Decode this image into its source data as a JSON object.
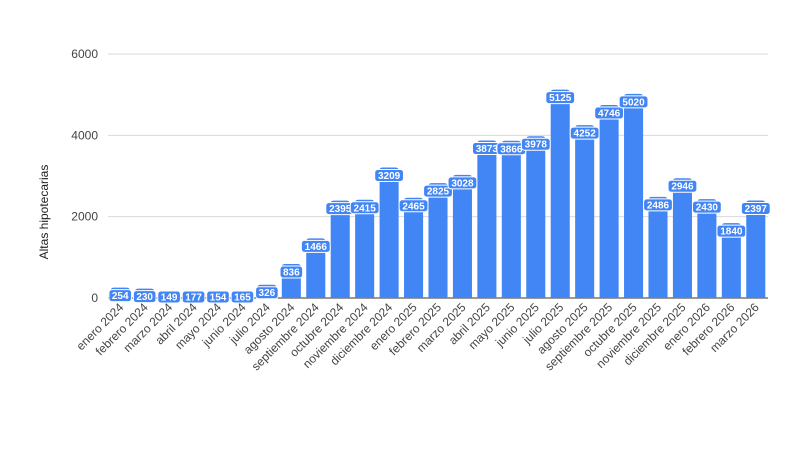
{
  "chart_data": {
    "type": "bar",
    "ylabel": "Altas hipotecarias",
    "xlabel": "",
    "ylim": [
      0,
      6000
    ],
    "yticks": [
      0,
      2000,
      4000,
      6000
    ],
    "grid": true,
    "legend": "none",
    "bar_color": "#4285f4",
    "categories": [
      "enero 2024",
      "febrero 2024",
      "marzo 2024",
      "abril 2024",
      "mayo 2024",
      "junio 2024",
      "julio 2024",
      "agosto 2024",
      "septiembre 2024",
      "octubre 2024",
      "noviembre 2024",
      "diciembre 2024",
      "enero 2025",
      "febrero 2025",
      "marzo 2025",
      "abril 2025",
      "mayo 2025",
      "junio 2025",
      "julio 2025",
      "agosto 2025",
      "septiembre 2025",
      "octubre 2025",
      "noviembre 2025",
      "diciembre 2025",
      "enero 2026",
      "febrero 2026",
      "marzo 2026"
    ],
    "values": [
      254,
      230,
      149,
      177,
      154,
      165,
      326,
      836,
      1466,
      2395,
      2415,
      3209,
      2465,
      2825,
      3028,
      3873,
      3866,
      3978,
      5125,
      4252,
      4746,
      5020,
      2486,
      2946,
      2430,
      1840,
      2397
    ]
  }
}
